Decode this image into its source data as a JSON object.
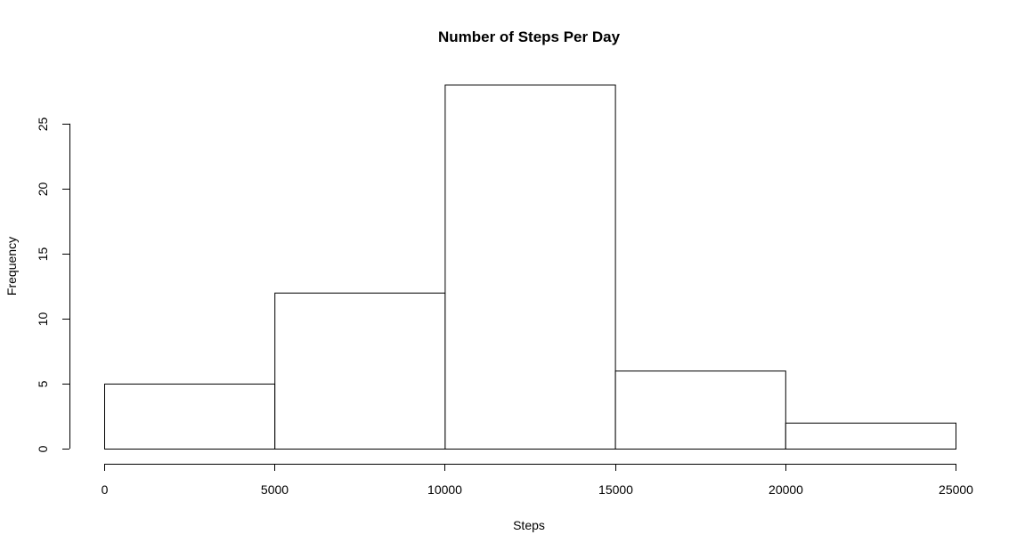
{
  "chart_data": {
    "type": "bar",
    "title": "Number of Steps Per Day",
    "xlabel": "Steps",
    "ylabel": "Frequency",
    "bins": [
      {
        "start": 0,
        "end": 5000,
        "value": 5
      },
      {
        "start": 5000,
        "end": 10000,
        "value": 12
      },
      {
        "start": 10000,
        "end": 15000,
        "value": 28
      },
      {
        "start": 15000,
        "end": 20000,
        "value": 6
      },
      {
        "start": 20000,
        "end": 25000,
        "value": 2
      }
    ],
    "xlim": [
      0,
      25000
    ],
    "ylim": [
      0,
      28
    ],
    "x_ticks": [
      0,
      5000,
      10000,
      15000,
      20000,
      25000
    ],
    "y_ticks": [
      0,
      5,
      10,
      15,
      20,
      25
    ],
    "grid": false,
    "bar_fill": "#ffffff",
    "bar_stroke": "#000000"
  }
}
